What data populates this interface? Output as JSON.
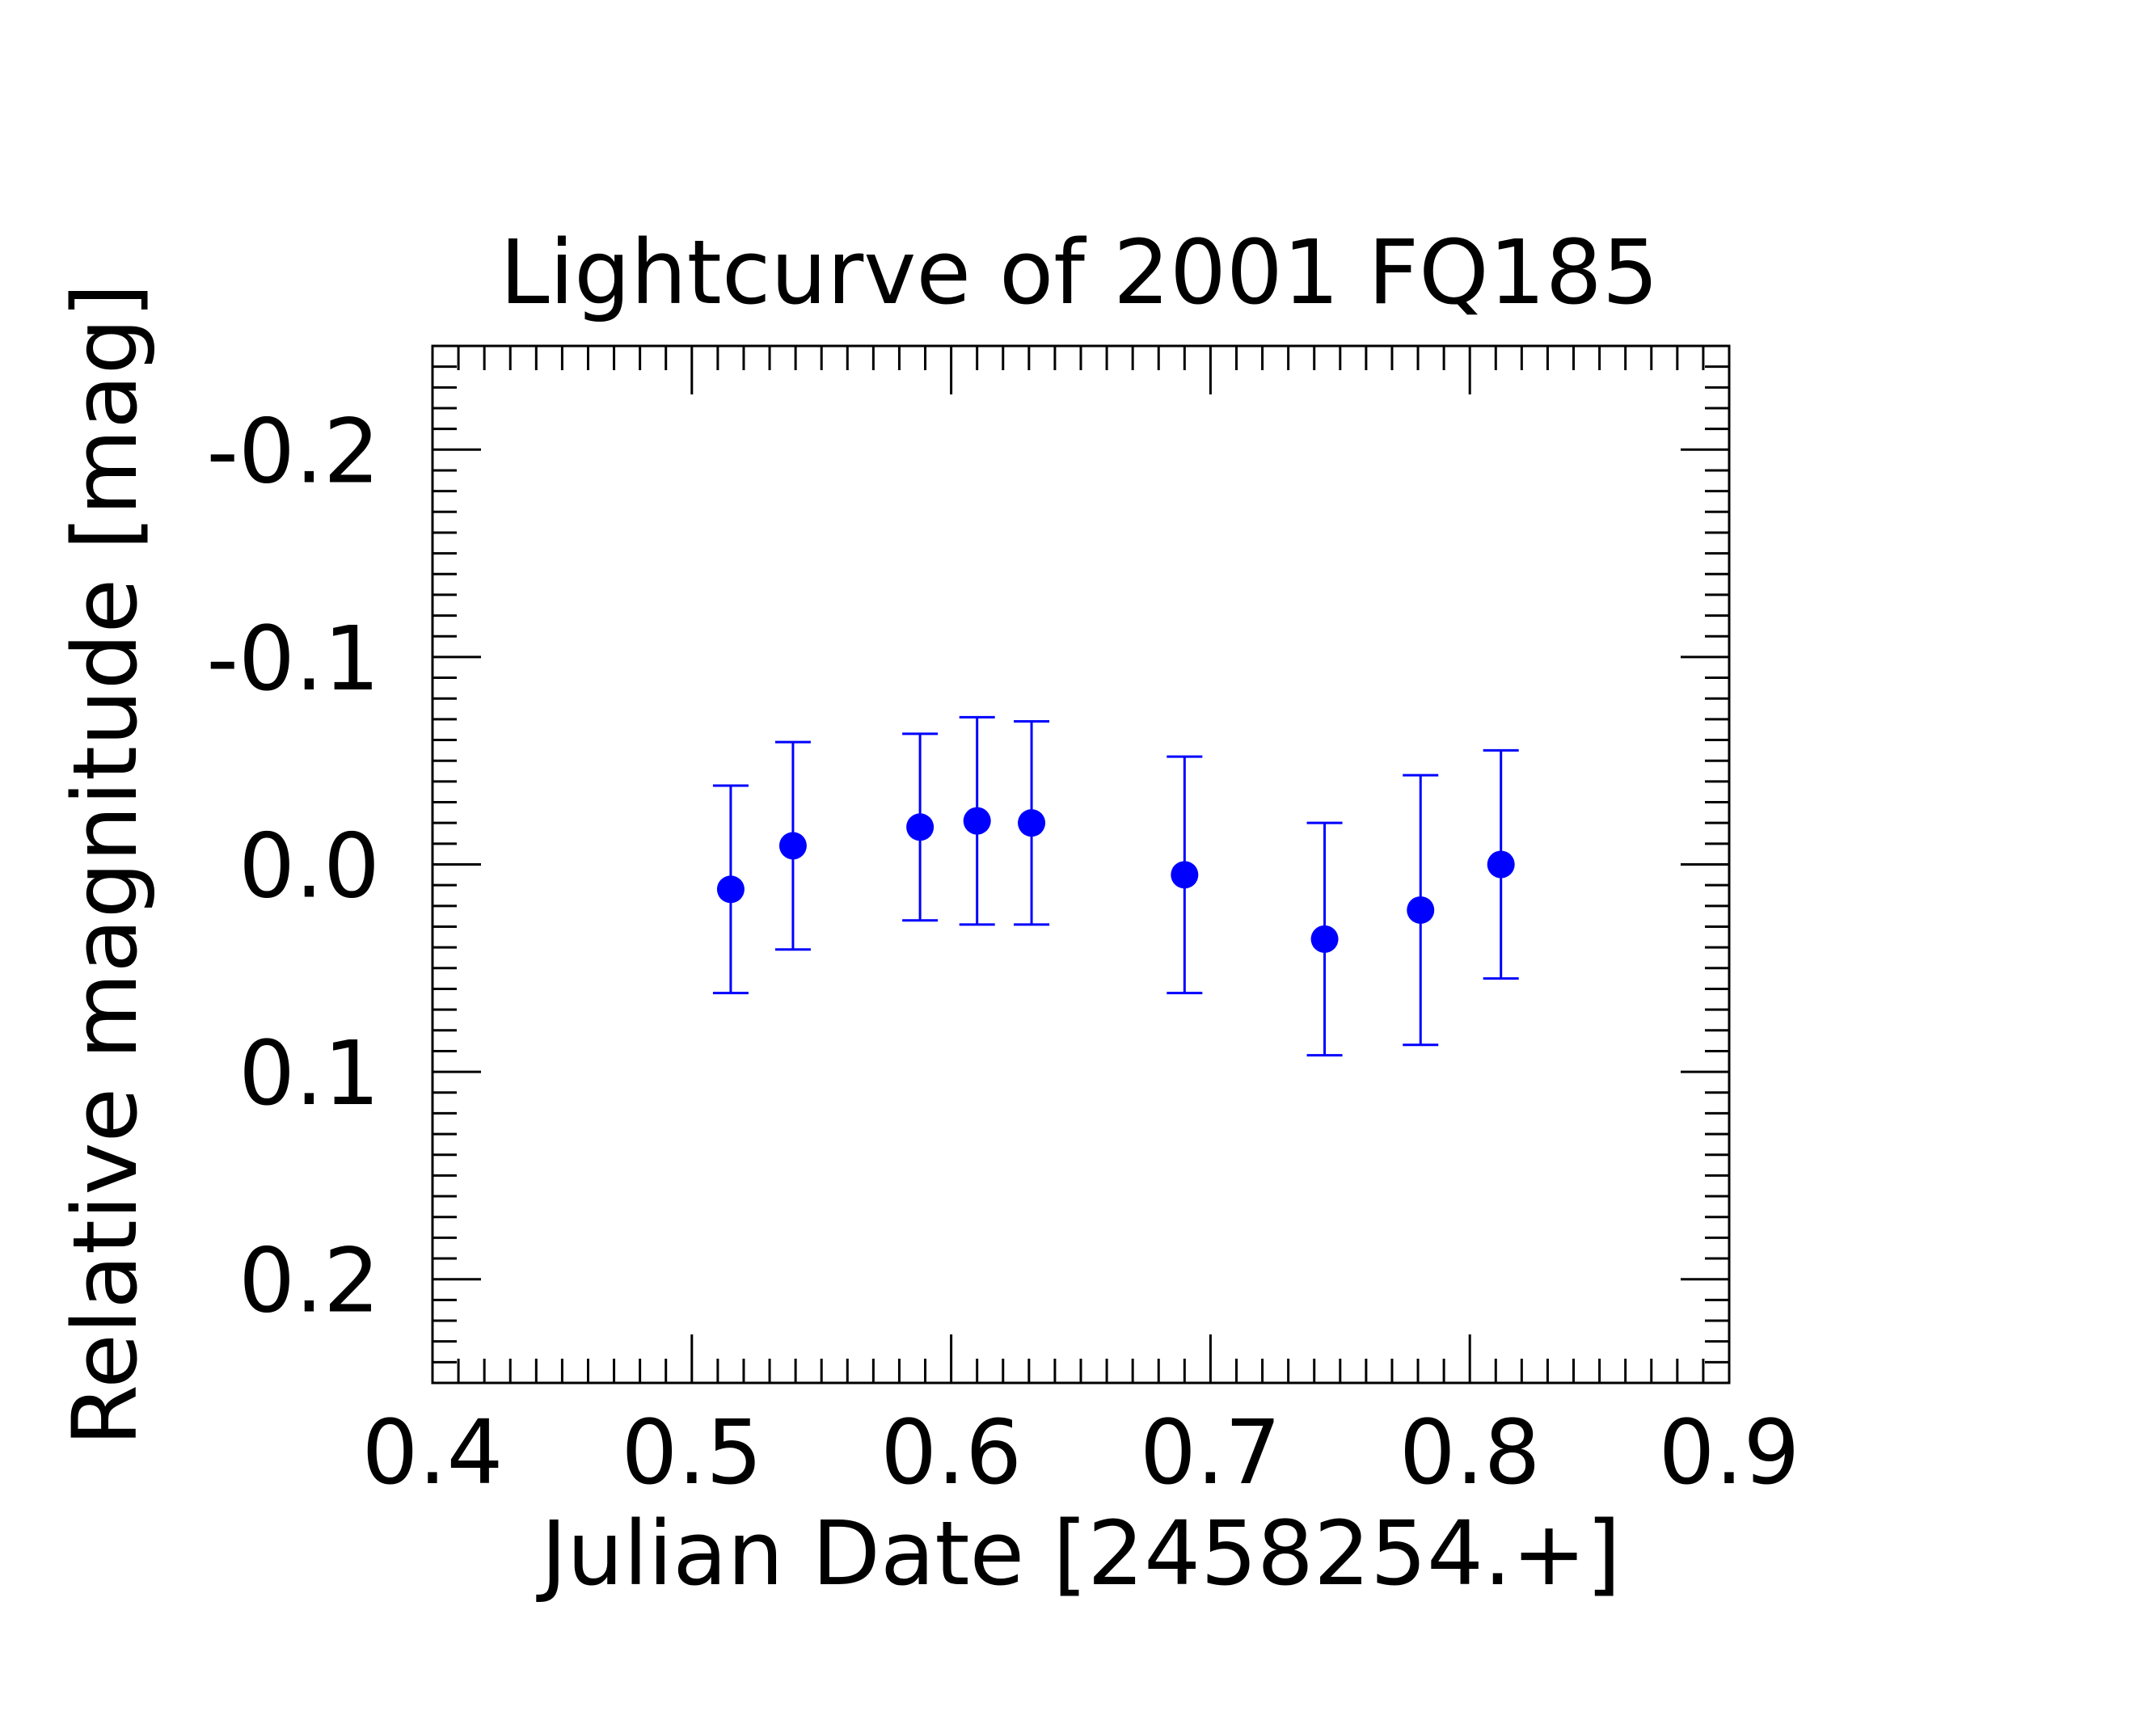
{
  "chart_data": {
    "type": "scatter",
    "title": "Lightcurve of 2001 FQ185",
    "xlabel": "Julian Date [2458254.+]",
    "ylabel": "Relative magnitude [mag]",
    "xlim": [
      0.4,
      0.9
    ],
    "ylim": [
      0.25,
      -0.25
    ],
    "y_inverted": true,
    "x_ticks": [
      0.4,
      0.5,
      0.6,
      0.7,
      0.8,
      0.9
    ],
    "x_tick_labels": [
      "0.4",
      "0.5",
      "0.6",
      "0.7",
      "0.8",
      "0.9"
    ],
    "y_ticks": [
      -0.2,
      -0.1,
      0.0,
      0.1,
      0.2
    ],
    "y_tick_labels": [
      "-0.2",
      "-0.1",
      "0.0",
      "0.1",
      "0.2"
    ],
    "grid": false,
    "marker_color": "#0000ff",
    "series": [
      {
        "x": [
          0.515,
          0.539,
          0.588,
          0.61,
          0.631,
          0.69,
          0.744,
          0.781,
          0.812
        ],
        "y": [
          0.012,
          -0.009,
          -0.018,
          -0.021,
          -0.02,
          0.005,
          0.036,
          0.022,
          0.0
        ],
        "err": [
          0.05,
          0.05,
          0.045,
          0.05,
          0.049,
          0.057,
          0.056,
          0.065,
          0.055
        ]
      }
    ]
  }
}
